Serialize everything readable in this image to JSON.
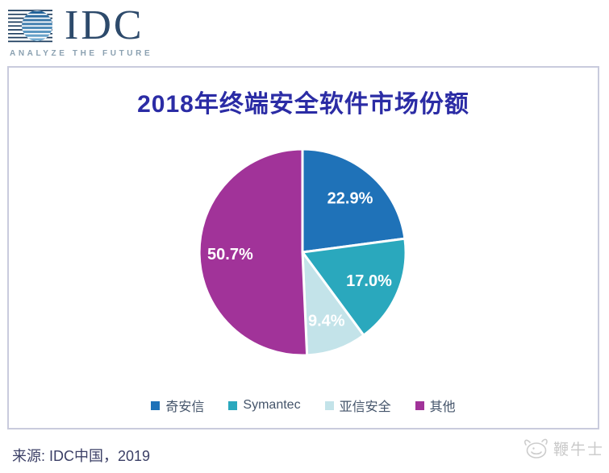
{
  "header": {
    "brand": "IDC",
    "tagline": "ANALYZE THE FUTURE"
  },
  "chart_data": {
    "type": "pie",
    "title": "2018年终端安全软件市场份额",
    "start_angle_deg": 0,
    "direction": "clockwise",
    "slices": [
      {
        "label": "奇安信",
        "value": 22.9,
        "display": "22.9%",
        "color": "#1f72b8"
      },
      {
        "label": "Symantec",
        "value": 17.0,
        "display": "17.0%",
        "color": "#2aa8bd"
      },
      {
        "label": "亚信安全",
        "value": 9.4,
        "display": "9.4%",
        "color": "#c3e3e9"
      },
      {
        "label": "其他",
        "value": 50.7,
        "display": "50.7%",
        "color": "#a13399"
      }
    ],
    "value_labels": "inside",
    "legend_position": "bottom"
  },
  "footer": {
    "source": "来源: IDC中国，2019"
  },
  "watermark": {
    "text": "鞭牛士"
  },
  "colors": {
    "title": "#2b2ca5",
    "card_border": "#c9cbdd",
    "legend_text": "#44546a",
    "brand_navy": "#2d4a6b",
    "tagline_gray": "#8ba1b1",
    "label_white": "#ffffff"
  }
}
